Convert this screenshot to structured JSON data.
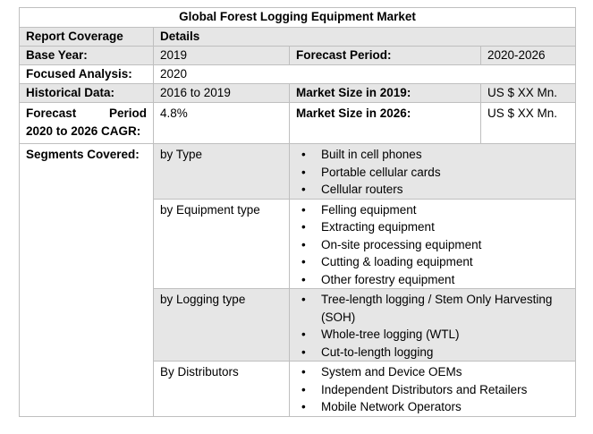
{
  "title": "Global Forest Logging Equipment Market",
  "header": {
    "col1": "Report Coverage",
    "col2": "Details"
  },
  "base_year": {
    "label": "Base Year:",
    "value": "2019",
    "forecast_label": "Forecast Period:",
    "forecast_value": "2020-2026"
  },
  "focused": {
    "label": "Focused Analysis:",
    "value": "2020"
  },
  "historical": {
    "label": "Historical Data:",
    "value": "2016 to 2019",
    "size_label": "Market Size in 2019:",
    "size_value": "US $ XX Mn."
  },
  "forecast": {
    "label_a": "Forecast",
    "label_b": "Period",
    "label_c": "2020 to 2026 CAGR:",
    "value": "4.8%",
    "size_label": "Market Size in 2026:",
    "size_value": "US $ XX Mn."
  },
  "segments": {
    "label": "Segments Covered:",
    "groups": [
      {
        "name": "by Type",
        "items": [
          "Built in cell phones",
          "Portable cellular cards",
          "Cellular routers"
        ]
      },
      {
        "name": "by Equipment type",
        "items": [
          "Felling equipment",
          "Extracting equipment",
          "On-site processing equipment",
          "Cutting & loading equipment",
          "Other forestry equipment"
        ]
      },
      {
        "name": "by Logging type",
        "items": [
          "Tree-length logging / Stem Only Harvesting (SOH)",
          "Whole-tree logging (WTL)",
          "Cut-to-length logging"
        ]
      },
      {
        "name": "By Distributors",
        "items": [
          "System and Device OEMs",
          "Independent Distributors and Retailers",
          "Mobile Network Operators"
        ]
      }
    ]
  }
}
